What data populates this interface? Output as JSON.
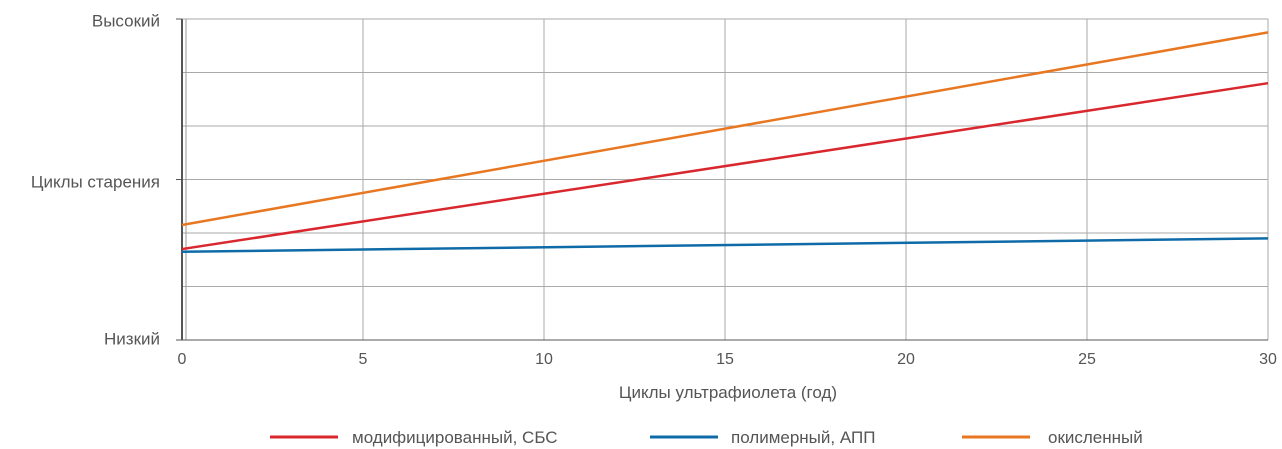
{
  "chart_data": {
    "type": "line",
    "xlabel": "Циклы ультрафиолета (год)",
    "y_tick_labels": [
      "Низкий",
      "Циклы старения",
      "Высокий"
    ],
    "x_ticks": [
      0,
      5,
      10,
      15,
      20,
      25,
      30
    ],
    "xlim": [
      0,
      30
    ],
    "ylim": [
      0,
      6
    ],
    "grid": true,
    "legend_position": "bottom",
    "series": [
      {
        "name": "модифицированный, СБС",
        "color": "#d9272e",
        "x": [
          0,
          30
        ],
        "y": [
          1.7,
          4.8
        ]
      },
      {
        "name": "полимерный, АПП",
        "color": "#0f6ba8",
        "x": [
          0,
          30
        ],
        "y": [
          1.65,
          1.9
        ]
      },
      {
        "name": "окисленный",
        "color": "#e87722",
        "x": [
          0,
          30
        ],
        "y": [
          2.15,
          5.75
        ]
      }
    ]
  }
}
